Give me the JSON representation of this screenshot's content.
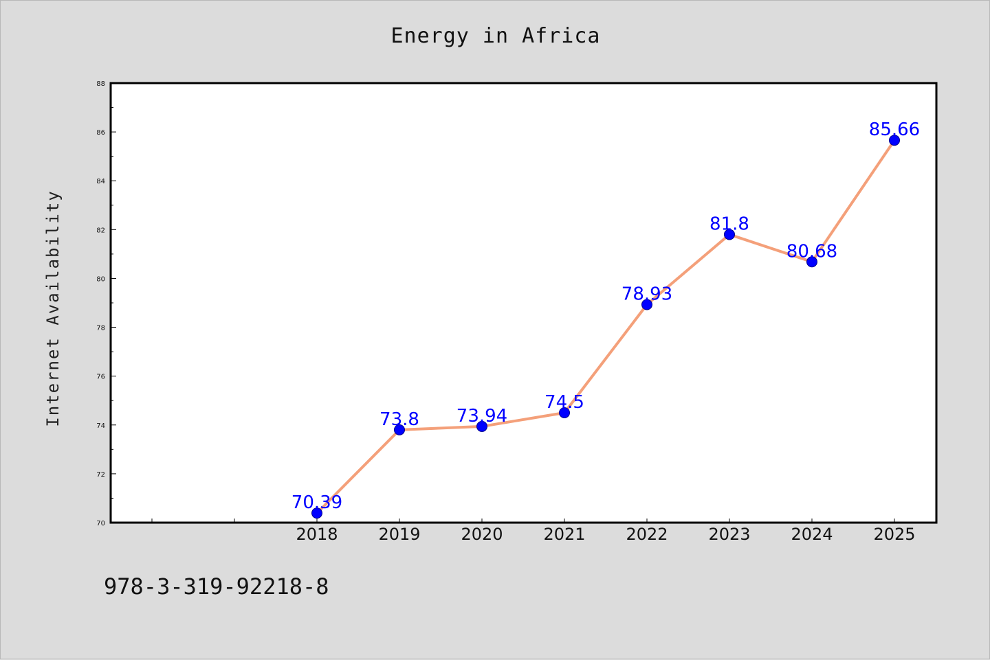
{
  "chart_data": {
    "type": "line",
    "title": "Energy in Africa",
    "xlabel": "",
    "ylabel": "Internet Availability",
    "categories": [
      "2018",
      "2019",
      "2020",
      "2021",
      "2022",
      "2023",
      "2024",
      "2025"
    ],
    "series": [
      {
        "values": [
          70.39,
          73.8,
          73.94,
          74.5,
          78.93,
          81.8,
          80.68,
          85.66
        ],
        "data_labels": [
          "70.39",
          "73.8",
          "73.94",
          "74.5",
          "78.93",
          "81.8",
          "80.68",
          "85.66"
        ],
        "line_color": "#f4a07a",
        "marker_color": "#0000ff"
      }
    ],
    "ylim": [
      70,
      88
    ],
    "yticks": [
      70,
      72,
      74,
      76,
      78,
      80,
      82,
      84,
      86,
      88
    ],
    "grid": false,
    "legend": "none"
  },
  "footer": {
    "code": "978-3-319-92218-8"
  },
  "colors": {
    "background": "#dcdcdc",
    "plot_background": "#ffffff",
    "data_label": "#0000ff"
  }
}
